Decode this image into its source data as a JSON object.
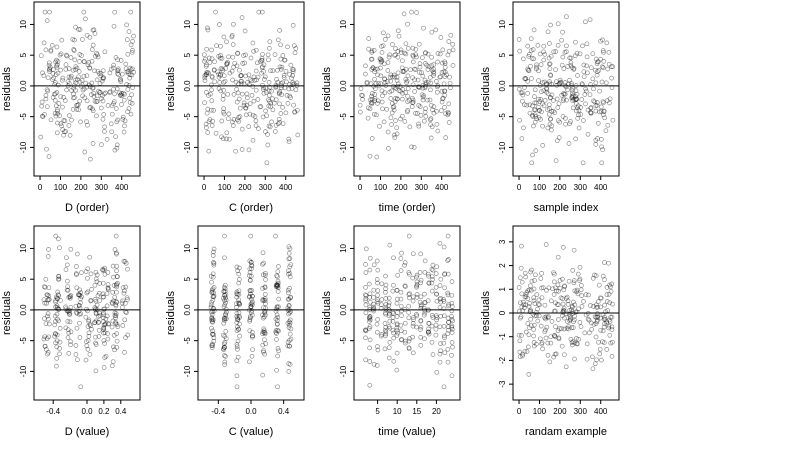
{
  "chart_data": [
    {
      "type": "scatter",
      "panel": "D-order",
      "xlabel": "D (order)",
      "ylabel": "residuals",
      "xlim": [
        -10,
        470
      ],
      "ylim": [
        -14,
        13
      ],
      "xticks": [
        {
          "v": 0,
          "label": "0"
        },
        {
          "v": 100,
          "label": "100"
        },
        {
          "v": 200,
          "label": "200"
        },
        {
          "v": 300,
          "label": "300"
        },
        {
          "v": 400,
          "label": "400"
        }
      ],
      "yticks": [
        {
          "v": -10,
          "label": "-10"
        },
        {
          "v": -5,
          "label": "-5"
        },
        {
          "v": 0,
          "label": "0.0"
        },
        {
          "v": 5,
          "label": "5"
        },
        {
          "v": 10,
          "label": "10"
        }
      ],
      "refline": 0
    },
    {
      "type": "scatter",
      "panel": "C-order",
      "xlabel": "C (order)",
      "ylabel": "residuals",
      "xlim": [
        -10,
        470
      ],
      "ylim": [
        -14,
        13
      ],
      "xticks": [
        {
          "v": 0,
          "label": "0"
        },
        {
          "v": 100,
          "label": "100"
        },
        {
          "v": 200,
          "label": "200"
        },
        {
          "v": 300,
          "label": "300"
        },
        {
          "v": 400,
          "label": "400"
        }
      ],
      "yticks": [
        {
          "v": -10,
          "label": "-10"
        },
        {
          "v": -5,
          "label": "-5"
        },
        {
          "v": 0,
          "label": "0.0"
        },
        {
          "v": 5,
          "label": "5"
        },
        {
          "v": 10,
          "label": "10"
        }
      ],
      "refline": 0
    },
    {
      "type": "scatter",
      "panel": "time-order",
      "xlabel": "time (order)",
      "ylabel": "residuals",
      "xlim": [
        -10,
        470
      ],
      "ylim": [
        -14,
        13
      ],
      "xticks": [
        {
          "v": 0,
          "label": "0"
        },
        {
          "v": 100,
          "label": "100"
        },
        {
          "v": 200,
          "label": "200"
        },
        {
          "v": 300,
          "label": "300"
        },
        {
          "v": 400,
          "label": "400"
        }
      ],
      "yticks": [
        {
          "v": -10,
          "label": "-10"
        },
        {
          "v": -5,
          "label": "-5"
        },
        {
          "v": 0,
          "label": "0.0"
        },
        {
          "v": 5,
          "label": "5"
        },
        {
          "v": 10,
          "label": "10"
        }
      ],
      "refline": 0
    },
    {
      "type": "scatter",
      "panel": "sample-index",
      "xlabel": "sample index",
      "ylabel": "residuals",
      "xlim": [
        -10,
        470
      ],
      "ylim": [
        -14,
        13
      ],
      "xticks": [
        {
          "v": 0,
          "label": "0"
        },
        {
          "v": 100,
          "label": "100"
        },
        {
          "v": 200,
          "label": "200"
        },
        {
          "v": 300,
          "label": "300"
        },
        {
          "v": 400,
          "label": "400"
        }
      ],
      "yticks": [
        {
          "v": -10,
          "label": "-10"
        },
        {
          "v": -5,
          "label": "-5"
        },
        {
          "v": 0,
          "label": "0.0"
        },
        {
          "v": 5,
          "label": "5"
        },
        {
          "v": 10,
          "label": "10"
        }
      ],
      "refline": 0
    },
    {
      "type": "scatter",
      "panel": "D-value",
      "xlabel": "D (value)",
      "ylabel": "residuals",
      "xlim": [
        -0.58,
        0.58
      ],
      "ylim": [
        -14,
        13
      ],
      "xticks": [
        {
          "v": -0.4,
          "label": "-0.4"
        },
        {
          "v": 0,
          "label": "0.0"
        },
        {
          "v": 0.2,
          "label": "0.2"
        },
        {
          "v": 0.4,
          "label": "0.4"
        }
      ],
      "yticks": [
        {
          "v": -10,
          "label": "-10"
        },
        {
          "v": -5,
          "label": "-5"
        },
        {
          "v": 0,
          "label": "0.0"
        },
        {
          "v": 5,
          "label": "5"
        },
        {
          "v": 10,
          "label": "10"
        }
      ],
      "refline": 0
    },
    {
      "type": "scatter",
      "panel": "C-value",
      "xlabel": "C (value)",
      "ylabel": "residuals",
      "xlim": [
        -0.6,
        0.6
      ],
      "ylim": [
        -14,
        13
      ],
      "xticks": [
        {
          "v": -0.4,
          "label": "-0.4"
        },
        {
          "v": 0,
          "label": "0.0"
        },
        {
          "v": 0.4,
          "label": "0.4"
        }
      ],
      "yticks": [
        {
          "v": -10,
          "label": "-10"
        },
        {
          "v": -5,
          "label": "-5"
        },
        {
          "v": 0,
          "label": "0.0"
        },
        {
          "v": 5,
          "label": "5"
        },
        {
          "v": 10,
          "label": "10"
        }
      ],
      "refline": 0
    },
    {
      "type": "scatter",
      "panel": "time-value",
      "xlabel": "time (value)",
      "ylabel": "residuals",
      "xlim": [
        0,
        25
      ],
      "ylim": [
        -14,
        13
      ],
      "xticks": [
        {
          "v": 5,
          "label": "5"
        },
        {
          "v": 10,
          "label": "10"
        },
        {
          "v": 15,
          "label": "15"
        },
        {
          "v": 20,
          "label": "20"
        }
      ],
      "yticks": [
        {
          "v": -10,
          "label": "-10"
        },
        {
          "v": -5,
          "label": "-5"
        },
        {
          "v": 0,
          "label": "0.0"
        },
        {
          "v": 5,
          "label": "5"
        },
        {
          "v": 10,
          "label": "10"
        }
      ],
      "refline": 0
    },
    {
      "type": "scatter",
      "panel": "random-example",
      "xlabel": "randam example",
      "ylabel": "residuals",
      "xlim": [
        -10,
        470
      ],
      "ylim": [
        -3.5,
        3.5
      ],
      "xticks": [
        {
          "v": 0,
          "label": "0"
        },
        {
          "v": 100,
          "label": "100"
        },
        {
          "v": 200,
          "label": "200"
        },
        {
          "v": 300,
          "label": "300"
        },
        {
          "v": 400,
          "label": "400"
        }
      ],
      "yticks": [
        {
          "v": -3,
          "label": "-3"
        },
        {
          "v": -2,
          "label": "-2"
        },
        {
          "v": -1,
          "label": "-1"
        },
        {
          "v": 0,
          "label": "0"
        },
        {
          "v": 1,
          "label": "1"
        },
        {
          "v": 2,
          "label": "2"
        },
        {
          "v": 3,
          "label": "3"
        }
      ],
      "refline": 0
    }
  ]
}
